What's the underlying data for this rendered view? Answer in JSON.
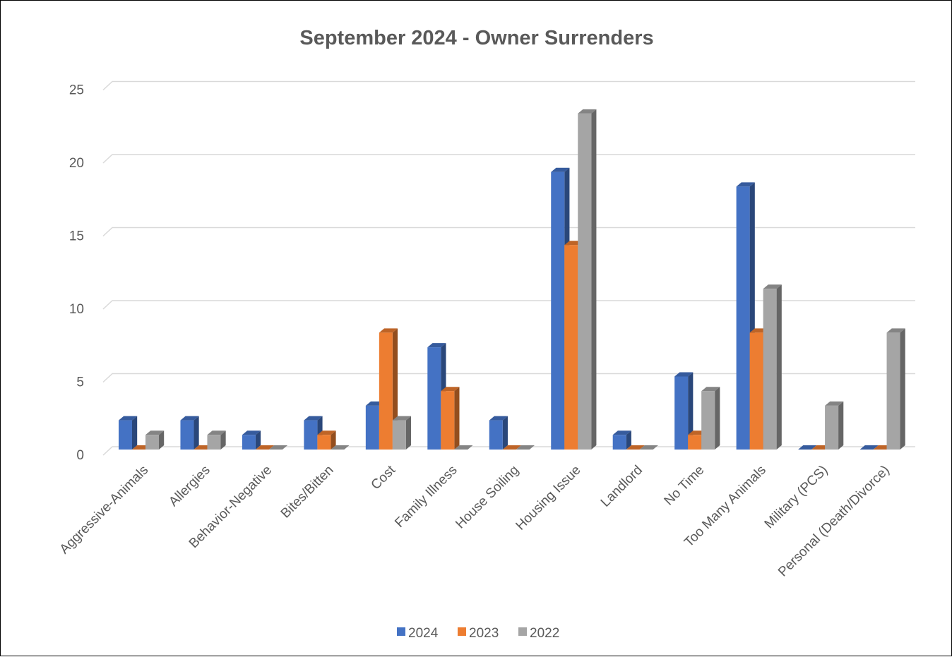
{
  "chart_data": {
    "type": "bar",
    "title": "September 2024 - Owner Surrenders",
    "xlabel": "",
    "ylabel": "",
    "ylim": [
      0,
      25
    ],
    "yticks": [
      0,
      5,
      10,
      15,
      20,
      25
    ],
    "grid": true,
    "legend_position": "bottom",
    "categories": [
      "Aggressive-Animals",
      "Allergies",
      "Behavior-Negative",
      "Bites/Bitten",
      "Cost",
      "Family Illness",
      "House Soiling",
      "Housing Issue",
      "Landlord",
      "No Time",
      "Too Many Animals",
      "Military (PCS)",
      "Personal (Death/Divorce)"
    ],
    "series": [
      {
        "name": "2024",
        "color": "#4472C4",
        "values": [
          2,
          2,
          1,
          2,
          3,
          7,
          2,
          19,
          1,
          5,
          18,
          0,
          0
        ]
      },
      {
        "name": "2023",
        "color": "#ED7D31",
        "values": [
          0,
          0,
          0,
          1,
          8,
          4,
          0,
          14,
          0,
          1,
          8,
          0,
          0
        ]
      },
      {
        "name": "2022",
        "color": "#A5A5A5",
        "values": [
          1,
          1,
          0,
          0,
          2,
          0,
          0,
          23,
          0,
          4,
          11,
          3,
          8
        ]
      }
    ]
  }
}
